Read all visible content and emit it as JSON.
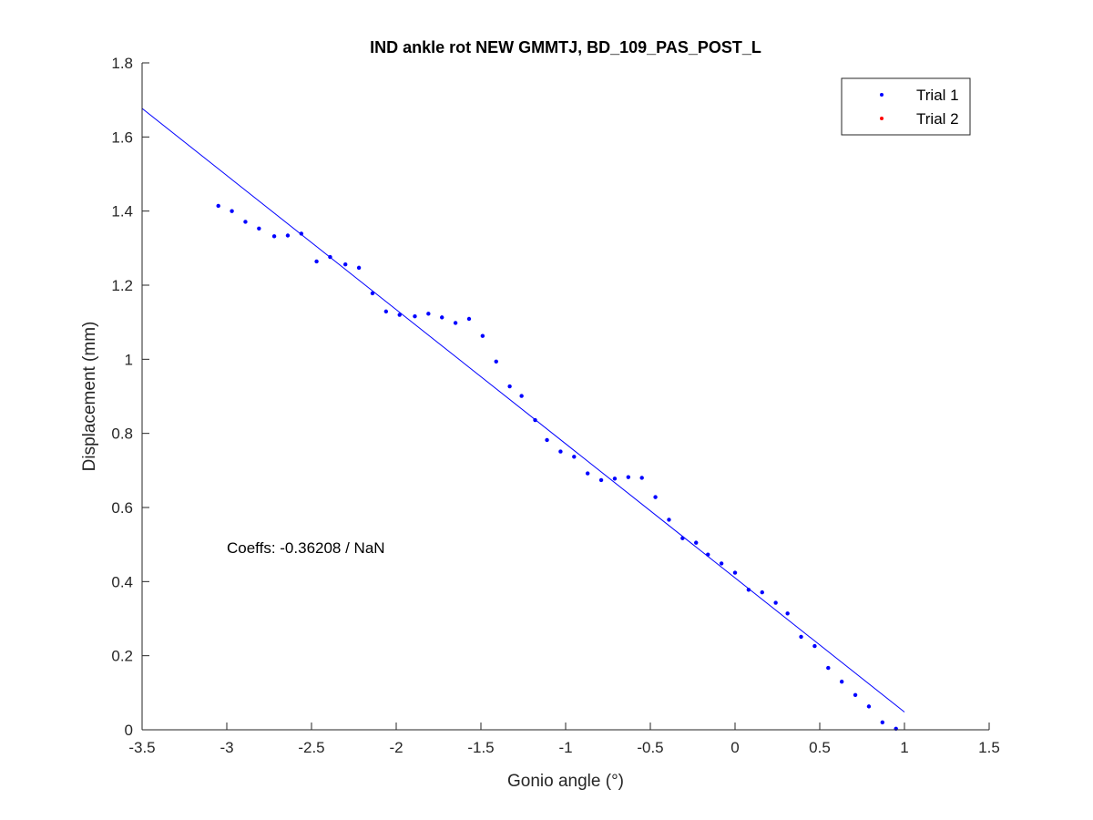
{
  "chart_data": {
    "type": "scatter",
    "title": "IND ankle rot NEW GMMTJ, BD_109_PAS_POST_L",
    "xlabel": "Gonio angle (°)",
    "ylabel": "Displacement (mm)",
    "xlim": [
      -3.5,
      1.5
    ],
    "ylim": [
      0,
      1.8
    ],
    "xticks": [
      -3.5,
      -3,
      -2.5,
      -2,
      -1.5,
      -1,
      -0.5,
      0,
      0.5,
      1,
      1.5
    ],
    "xtick_labels": [
      "-3.5",
      "-3",
      "-2.5",
      "-2",
      "-1.5",
      "-1",
      "-0.5",
      "0",
      "0.5",
      "1",
      "1.5"
    ],
    "yticks": [
      0,
      0.2,
      0.4,
      0.6,
      0.8,
      1,
      1.2,
      1.4,
      1.6,
      1.8
    ],
    "ytick_labels": [
      "0",
      "0.2",
      "0.4",
      "0.6",
      "0.8",
      "1",
      "1.2",
      "1.4",
      "1.6",
      "1.8"
    ],
    "grid": false,
    "legend_position": "top-right",
    "annotation": "Coeffs: -0.36208 / NaN",
    "series": [
      {
        "name": "Trial 1",
        "color": "#0000ff",
        "points": [
          [
            -3.05,
            1.414
          ],
          [
            -2.97,
            1.4
          ],
          [
            -2.89,
            1.371
          ],
          [
            -2.81,
            1.353
          ],
          [
            -2.72,
            1.332
          ],
          [
            -2.64,
            1.334
          ],
          [
            -2.56,
            1.339
          ],
          [
            -2.47,
            1.264
          ],
          [
            -2.39,
            1.276
          ],
          [
            -2.3,
            1.256
          ],
          [
            -2.22,
            1.247
          ],
          [
            -2.14,
            1.178
          ],
          [
            -2.06,
            1.129
          ],
          [
            -1.98,
            1.12
          ],
          [
            -1.89,
            1.116
          ],
          [
            -1.81,
            1.123
          ],
          [
            -1.73,
            1.113
          ],
          [
            -1.65,
            1.098
          ],
          [
            -1.57,
            1.109
          ],
          [
            -1.49,
            1.063
          ],
          [
            -1.41,
            0.994
          ],
          [
            -1.33,
            0.927
          ],
          [
            -1.26,
            0.901
          ],
          [
            -1.18,
            0.836
          ],
          [
            -1.11,
            0.782
          ],
          [
            -1.03,
            0.751
          ],
          [
            -0.95,
            0.737
          ],
          [
            -0.87,
            0.692
          ],
          [
            -0.79,
            0.674
          ],
          [
            -0.71,
            0.678
          ],
          [
            -0.63,
            0.682
          ],
          [
            -0.55,
            0.68
          ],
          [
            -0.47,
            0.628
          ],
          [
            -0.39,
            0.567
          ],
          [
            -0.31,
            0.517
          ],
          [
            -0.23,
            0.505
          ],
          [
            -0.16,
            0.473
          ],
          [
            -0.08,
            0.449
          ],
          [
            0.0,
            0.424
          ],
          [
            0.08,
            0.378
          ],
          [
            0.16,
            0.371
          ],
          [
            0.24,
            0.343
          ],
          [
            0.31,
            0.314
          ],
          [
            0.39,
            0.251
          ],
          [
            0.47,
            0.226
          ],
          [
            0.55,
            0.167
          ],
          [
            0.63,
            0.13
          ],
          [
            0.71,
            0.094
          ],
          [
            0.79,
            0.063
          ],
          [
            0.87,
            0.02
          ],
          [
            0.95,
            0.003
          ]
        ]
      },
      {
        "name": "Trial 2",
        "color": "#ff0000",
        "points": []
      }
    ],
    "fit_line": {
      "color": "#0000ff",
      "x": [
        -3.5,
        1.0
      ],
      "y": [
        1.677,
        0.048
      ]
    }
  }
}
